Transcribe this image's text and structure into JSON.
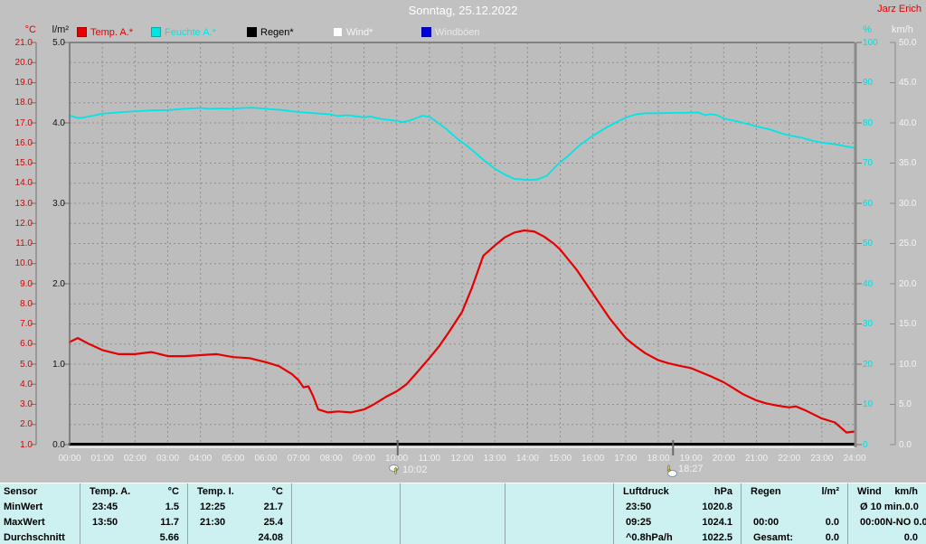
{
  "header": {
    "title": "Sonntag, 25.12.2022",
    "station": "Jarz Erich"
  },
  "axis_units": {
    "temp": "°C",
    "rain": "l/m²",
    "humidity": "%",
    "wind": "km/h"
  },
  "legend": [
    {
      "label": "Temp. A.*",
      "color": "#e60000",
      "text_color": "#e60000"
    },
    {
      "label": "Feuchte A.*",
      "color": "#00e6e6",
      "text_color": "#00e6e6"
    },
    {
      "label": "Regen*",
      "color": "#000000",
      "text_color": "#000000"
    },
    {
      "label": "Wind*",
      "color": "#ffffff",
      "text_color": "#f6f6f6"
    },
    {
      "label": "Windböen",
      "color": "#0000dd",
      "text_color": "#e8e8e8"
    }
  ],
  "chart_data": {
    "type": "line",
    "title": "Sonntag, 25.12.2022",
    "grid": "dashed, hourly vertical, 1°C horizontal",
    "x_axis": {
      "range_hours": [
        0,
        24
      ],
      "ticks": [
        "00:00",
        "01:00",
        "02:00",
        "03:00",
        "04:00",
        "05:00",
        "06:00",
        "07:00",
        "08:00",
        "09:00",
        "10:00",
        "11:00",
        "12:00",
        "13:00",
        "14:00",
        "15:00",
        "16:00",
        "17:00",
        "18:00",
        "19:00",
        "20:00",
        "21:00",
        "22:00",
        "23:00",
        "24:00"
      ]
    },
    "y_axes": {
      "temp": {
        "unit": "°C",
        "min": 1,
        "max": 21,
        "color": "#dd0000",
        "ticks": [
          "21.0",
          "20.0",
          "19.0",
          "18.0",
          "17.0",
          "16.0",
          "15.0",
          "14.0",
          "13.0",
          "12.0",
          "11.0",
          "10.0",
          "9.0",
          "8.0",
          "7.0",
          "6.0",
          "5.0",
          "4.0",
          "3.0",
          "2.0",
          "1.0"
        ]
      },
      "rain": {
        "unit": "l/m²",
        "min": 0,
        "max": 5,
        "color": "#111111",
        "ticks": [
          "5.0",
          "4.0",
          "3.0",
          "2.0",
          "1.0",
          "0.0"
        ]
      },
      "humidity": {
        "unit": "%",
        "min": 0,
        "max": 100,
        "color": "#00dede",
        "ticks": [
          "100",
          "90",
          "80",
          "70",
          "60",
          "50",
          "40",
          "30",
          "20",
          "10",
          "0"
        ]
      },
      "wind": {
        "unit": "km/h",
        "min": 0,
        "max": 50,
        "color": "#f4f4f4",
        "ticks": [
          "50.0",
          "45.0",
          "40.0",
          "35.0",
          "30.0",
          "25.0",
          "20.0",
          "15.0",
          "10.0",
          "5.0",
          "0.0"
        ]
      }
    },
    "series": [
      {
        "name": "Feuchte A.",
        "axis": "humidity",
        "color": "#00e6e6",
        "width": 1.8,
        "dy": 0,
        "points": [
          [
            0,
            81.8
          ],
          [
            0.3,
            81.2
          ],
          [
            0.6,
            81.6
          ],
          [
            1,
            82.3
          ],
          [
            1.5,
            82.6
          ],
          [
            2,
            82.9
          ],
          [
            2.5,
            83.1
          ],
          [
            3,
            83.2
          ],
          [
            3.5,
            83.5
          ],
          [
            4,
            83.7
          ],
          [
            4.3,
            83.5
          ],
          [
            4.7,
            83.6
          ],
          [
            5,
            83.5
          ],
          [
            5.3,
            83.7
          ],
          [
            5.6,
            83.8
          ],
          [
            6,
            83.5
          ],
          [
            6.5,
            83.2
          ],
          [
            7,
            82.7
          ],
          [
            7.5,
            82.4
          ],
          [
            8,
            82.1
          ],
          [
            8.2,
            81.7
          ],
          [
            8.5,
            81.9
          ],
          [
            9,
            81.4
          ],
          [
            9.2,
            81.6
          ],
          [
            9.5,
            81.0
          ],
          [
            10,
            80.5
          ],
          [
            10.2,
            80.2
          ],
          [
            10.4,
            80.6
          ],
          [
            10.6,
            81.2
          ],
          [
            10.8,
            81.8
          ],
          [
            11,
            81.5
          ],
          [
            11.2,
            80.4
          ],
          [
            11.5,
            78.6
          ],
          [
            11.8,
            76.4
          ],
          [
            12.1,
            74.6
          ],
          [
            12.4,
            72.6
          ],
          [
            12.65,
            70.8
          ],
          [
            13,
            68.6
          ],
          [
            13.3,
            67.2
          ],
          [
            13.6,
            66.1
          ],
          [
            14,
            65.8
          ],
          [
            14.3,
            65.9
          ],
          [
            14.6,
            66.9
          ],
          [
            14.9,
            69.5
          ],
          [
            15.2,
            71.5
          ],
          [
            15.6,
            74.5
          ],
          [
            16,
            76.8
          ],
          [
            16.4,
            78.8
          ],
          [
            16.7,
            80.1
          ],
          [
            17,
            81.3
          ],
          [
            17.3,
            82.1
          ],
          [
            17.6,
            82.4
          ],
          [
            18,
            82.4
          ],
          [
            18.4,
            82.5
          ],
          [
            18.8,
            82.5
          ],
          [
            19.2,
            82.6
          ],
          [
            19.45,
            81.9
          ],
          [
            19.6,
            82.2
          ],
          [
            19.8,
            81.9
          ],
          [
            20,
            81.1
          ],
          [
            20.4,
            80.4
          ],
          [
            20.8,
            79.6
          ],
          [
            21,
            79.1
          ],
          [
            21.4,
            78.4
          ],
          [
            21.8,
            77.3
          ],
          [
            22,
            76.9
          ],
          [
            22.4,
            76.3
          ],
          [
            22.8,
            75.4
          ],
          [
            23,
            75.1
          ],
          [
            23.4,
            74.7
          ],
          [
            23.7,
            74.2
          ],
          [
            24,
            73.8
          ]
        ]
      },
      {
        "name": "Temp. A.",
        "axis": "temp",
        "color": "#e60000",
        "width": 2.2,
        "dy": 0,
        "points": [
          [
            0,
            6.1
          ],
          [
            0.25,
            6.3
          ],
          [
            0.6,
            6.0
          ],
          [
            1,
            5.7
          ],
          [
            1.5,
            5.5
          ],
          [
            2,
            5.5
          ],
          [
            2.5,
            5.6
          ],
          [
            3,
            5.4
          ],
          [
            3.5,
            5.4
          ],
          [
            4,
            5.45
          ],
          [
            4.5,
            5.5
          ],
          [
            5,
            5.35
          ],
          [
            5.5,
            5.3
          ],
          [
            6,
            5.1
          ],
          [
            6.4,
            4.9
          ],
          [
            6.8,
            4.5
          ],
          [
            7,
            4.2
          ],
          [
            7.15,
            3.85
          ],
          [
            7.3,
            3.9
          ],
          [
            7.45,
            3.4
          ],
          [
            7.6,
            2.75
          ],
          [
            7.9,
            2.6
          ],
          [
            8.2,
            2.65
          ],
          [
            8.6,
            2.6
          ],
          [
            9,
            2.75
          ],
          [
            9.3,
            3.0
          ],
          [
            9.7,
            3.4
          ],
          [
            10,
            3.65
          ],
          [
            10.3,
            4.0
          ],
          [
            10.6,
            4.55
          ],
          [
            11,
            5.3
          ],
          [
            11.3,
            5.9
          ],
          [
            11.6,
            6.6
          ],
          [
            12,
            7.6
          ],
          [
            12.3,
            8.8
          ],
          [
            12.65,
            10.4
          ],
          [
            13,
            10.9
          ],
          [
            13.3,
            11.3
          ],
          [
            13.6,
            11.55
          ],
          [
            13.9,
            11.65
          ],
          [
            14.2,
            11.6
          ],
          [
            14.5,
            11.35
          ],
          [
            14.8,
            11.0
          ],
          [
            15,
            10.7
          ],
          [
            15.5,
            9.7
          ],
          [
            16,
            8.5
          ],
          [
            16.5,
            7.3
          ],
          [
            17,
            6.3
          ],
          [
            17.3,
            5.9
          ],
          [
            17.6,
            5.55
          ],
          [
            18,
            5.2
          ],
          [
            18.3,
            5.05
          ],
          [
            18.7,
            4.9
          ],
          [
            19,
            4.8
          ],
          [
            19.3,
            4.6
          ],
          [
            19.6,
            4.4
          ],
          [
            20,
            4.1
          ],
          [
            20.3,
            3.8
          ],
          [
            20.6,
            3.5
          ],
          [
            21,
            3.2
          ],
          [
            21.3,
            3.05
          ],
          [
            21.6,
            2.95
          ],
          [
            22,
            2.85
          ],
          [
            22.2,
            2.9
          ],
          [
            22.5,
            2.7
          ],
          [
            23,
            2.3
          ],
          [
            23.4,
            2.1
          ],
          [
            23.75,
            1.6
          ],
          [
            24,
            1.65
          ]
        ]
      },
      {
        "name": "Regen",
        "axis": "rain",
        "color": "#000000",
        "width": 3,
        "dy": -0.5,
        "points": [
          [
            0,
            0
          ],
          [
            24,
            0
          ]
        ]
      },
      {
        "name": "Wind",
        "axis": "wind",
        "color": "#ffffff",
        "width": 1.3,
        "dy": 3,
        "points": [
          [
            0,
            0
          ],
          [
            24,
            0
          ]
        ]
      }
    ],
    "markers": [
      {
        "time": "10:02",
        "hour": 10.03,
        "direction": "up"
      },
      {
        "time": "18:27",
        "hour": 18.45,
        "direction": "down"
      }
    ]
  },
  "table": {
    "row_labels": [
      "Sensor",
      "MinWert",
      "MaxWert",
      "Durchschnitt"
    ],
    "temp_a": {
      "name": "Temp. A.",
      "unit": "°C",
      "min_time": "23:45",
      "min": "1.5",
      "max_time": "13:50",
      "max": "11.7",
      "avg": "5.66"
    },
    "temp_i": {
      "name": "Temp. I.",
      "unit": "°C",
      "min_time": "12:25",
      "min": "21.7",
      "max_time": "21:30",
      "max": "25.4",
      "avg": "24.08"
    },
    "luftdruck": {
      "name": "Luftdruck",
      "unit": "hPa",
      "min_time": "23:50",
      "min": "1020.8",
      "max_time": "09:25",
      "max": "1024.1",
      "avg_label": "^0.8hPa/h",
      "avg": "1022.5"
    },
    "regen": {
      "name": "Regen",
      "unit": "l/m²",
      "max_time": "00:00",
      "max": "0.0",
      "avg_label": "Gesamt:",
      "avg": "0.0"
    },
    "wind": {
      "name": "Wind",
      "unit": "km/h",
      "min_label": "Ø 10 min.",
      "min": "0.0",
      "max_time": "00:00",
      "max": "N-NO 0.0",
      "avg": "0.0"
    }
  }
}
